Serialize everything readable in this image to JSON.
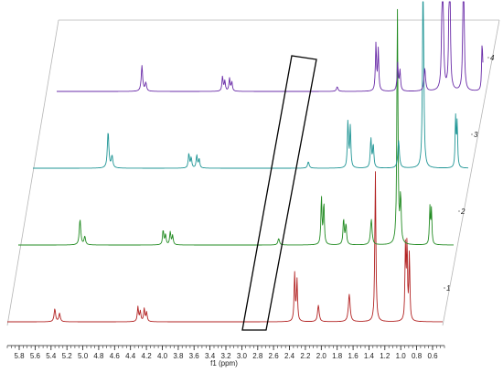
{
  "chart_data": {
    "type": "line",
    "title": "",
    "xlabel": "f1 (ppm)",
    "ylabel": "",
    "xlim": [
      5.95,
      0.45
    ],
    "x_reversed": true,
    "x_ticks": [
      5.8,
      5.6,
      5.4,
      5.2,
      5.0,
      4.8,
      4.6,
      4.4,
      4.2,
      4.0,
      3.8,
      3.6,
      3.4,
      3.2,
      3.0,
      2.8,
      2.6,
      2.4,
      2.2,
      2.0,
      1.8,
      1.6,
      1.4,
      1.2,
      1.0,
      0.8,
      0.6
    ],
    "x_tick_labels": [
      "5.8",
      "5.6",
      "5.4",
      "5.2",
      "5.0",
      "4.8",
      "4.6",
      "4.4",
      "4.2",
      "4.0",
      "3.8",
      "3.6",
      "3.4",
      "3.2",
      "3.0",
      "2.8",
      "2.6",
      "2.4",
      "2.2",
      "2.0",
      "1.8",
      "1.6",
      "1.4",
      "1.2",
      "1.0",
      "0.8",
      "0.6"
    ],
    "stacked": true,
    "grid": false,
    "legend": "none",
    "annotation": {
      "shape": "rectangle",
      "x_range": [
        2.95,
        2.25
      ],
      "spans": "all traces"
    },
    "series": [
      {
        "name": "1",
        "color": "#b22222",
        "peaks": [
          {
            "x": 5.35,
            "h": 0.14,
            "w": 0.011
          },
          {
            "x": 5.29,
            "h": 0.09,
            "w": 0.011
          },
          {
            "x": 4.3,
            "h": 0.16,
            "w": 0.009
          },
          {
            "x": 4.27,
            "h": 0.11,
            "w": 0.009
          },
          {
            "x": 4.22,
            "h": 0.14,
            "w": 0.009
          },
          {
            "x": 4.19,
            "h": 0.1,
            "w": 0.009
          },
          {
            "x": 2.32,
            "h": 0.52,
            "w": 0.008
          },
          {
            "x": 2.29,
            "h": 0.45,
            "w": 0.008
          },
          {
            "x": 2.02,
            "h": 0.18,
            "w": 0.012
          },
          {
            "x": 1.63,
            "h": 0.3,
            "w": 0.013
          },
          {
            "x": 1.3,
            "h": 1.65,
            "w": 0.008
          },
          {
            "x": 0.92,
            "h": 0.8,
            "w": 0.007
          },
          {
            "x": 0.9,
            "h": 0.85,
            "w": 0.007
          },
          {
            "x": 0.87,
            "h": 0.75,
            "w": 0.007
          }
        ]
      },
      {
        "name": "2",
        "color": "#228b22",
        "peaks": [
          {
            "x": 5.17,
            "h": 0.28,
            "w": 0.011
          },
          {
            "x": 5.11,
            "h": 0.09,
            "w": 0.011
          },
          {
            "x": 4.12,
            "h": 0.16,
            "w": 0.009
          },
          {
            "x": 4.09,
            "h": 0.11,
            "w": 0.009
          },
          {
            "x": 4.03,
            "h": 0.14,
            "w": 0.009
          },
          {
            "x": 4.0,
            "h": 0.1,
            "w": 0.009
          },
          {
            "x": 2.66,
            "h": 0.07,
            "w": 0.012
          },
          {
            "x": 2.12,
            "h": 0.52,
            "w": 0.008
          },
          {
            "x": 2.09,
            "h": 0.45,
            "w": 0.008
          },
          {
            "x": 1.84,
            "h": 0.28,
            "w": 0.009
          },
          {
            "x": 1.81,
            "h": 0.22,
            "w": 0.009
          },
          {
            "x": 1.49,
            "h": 0.28,
            "w": 0.012
          },
          {
            "x": 1.16,
            "h": 2.6,
            "w": 0.008
          },
          {
            "x": 1.12,
            "h": 0.5,
            "w": 0.009
          },
          {
            "x": 0.75,
            "h": 0.4,
            "w": 0.007
          },
          {
            "x": 0.73,
            "h": 0.38,
            "w": 0.007
          }
        ]
      },
      {
        "name": "3",
        "color": "#1f9595",
        "peaks": [
          {
            "x": 5.0,
            "h": 0.4,
            "w": 0.011
          },
          {
            "x": 4.95,
            "h": 0.13,
            "w": 0.011
          },
          {
            "x": 3.98,
            "h": 0.16,
            "w": 0.009
          },
          {
            "x": 3.95,
            "h": 0.11,
            "w": 0.009
          },
          {
            "x": 3.88,
            "h": 0.14,
            "w": 0.009
          },
          {
            "x": 3.85,
            "h": 0.1,
            "w": 0.009
          },
          {
            "x": 2.47,
            "h": 0.07,
            "w": 0.012
          },
          {
            "x": 1.97,
            "h": 0.52,
            "w": 0.008
          },
          {
            "x": 1.94,
            "h": 0.45,
            "w": 0.008
          },
          {
            "x": 1.68,
            "h": 0.32,
            "w": 0.009
          },
          {
            "x": 1.65,
            "h": 0.25,
            "w": 0.009
          },
          {
            "x": 1.33,
            "h": 0.3,
            "w": 0.012
          },
          {
            "x": 1.02,
            "h": 2.6,
            "w": 0.008
          },
          {
            "x": 0.61,
            "h": 0.55,
            "w": 0.007
          },
          {
            "x": 0.59,
            "h": 0.48,
            "w": 0.007
          }
        ]
      },
      {
        "name": "4",
        "color": "#6a2ca8",
        "peaks": [
          {
            "x": 4.85,
            "h": 0.28,
            "w": 0.011
          },
          {
            "x": 4.8,
            "h": 0.09,
            "w": 0.011
          },
          {
            "x": 3.81,
            "h": 0.16,
            "w": 0.009
          },
          {
            "x": 3.78,
            "h": 0.11,
            "w": 0.009
          },
          {
            "x": 3.72,
            "h": 0.14,
            "w": 0.009
          },
          {
            "x": 3.69,
            "h": 0.1,
            "w": 0.009
          },
          {
            "x": 2.33,
            "h": 0.05,
            "w": 0.012
          },
          {
            "x": 1.83,
            "h": 0.52,
            "w": 0.008
          },
          {
            "x": 1.8,
            "h": 0.45,
            "w": 0.008
          },
          {
            "x": 1.55,
            "h": 0.3,
            "w": 0.009
          },
          {
            "x": 1.52,
            "h": 0.22,
            "w": 0.009
          },
          {
            "x": 1.2,
            "h": 0.25,
            "w": 0.012
          },
          {
            "x": 0.97,
            "h": 2.6,
            "w": 0.008
          },
          {
            "x": 0.88,
            "h": 2.2,
            "w": 0.008
          },
          {
            "x": 0.7,
            "h": 2.0,
            "w": 0.008
          },
          {
            "x": 0.46,
            "h": 0.5,
            "w": 0.007
          },
          {
            "x": 0.44,
            "h": 0.45,
            "w": 0.007
          }
        ]
      }
    ]
  }
}
